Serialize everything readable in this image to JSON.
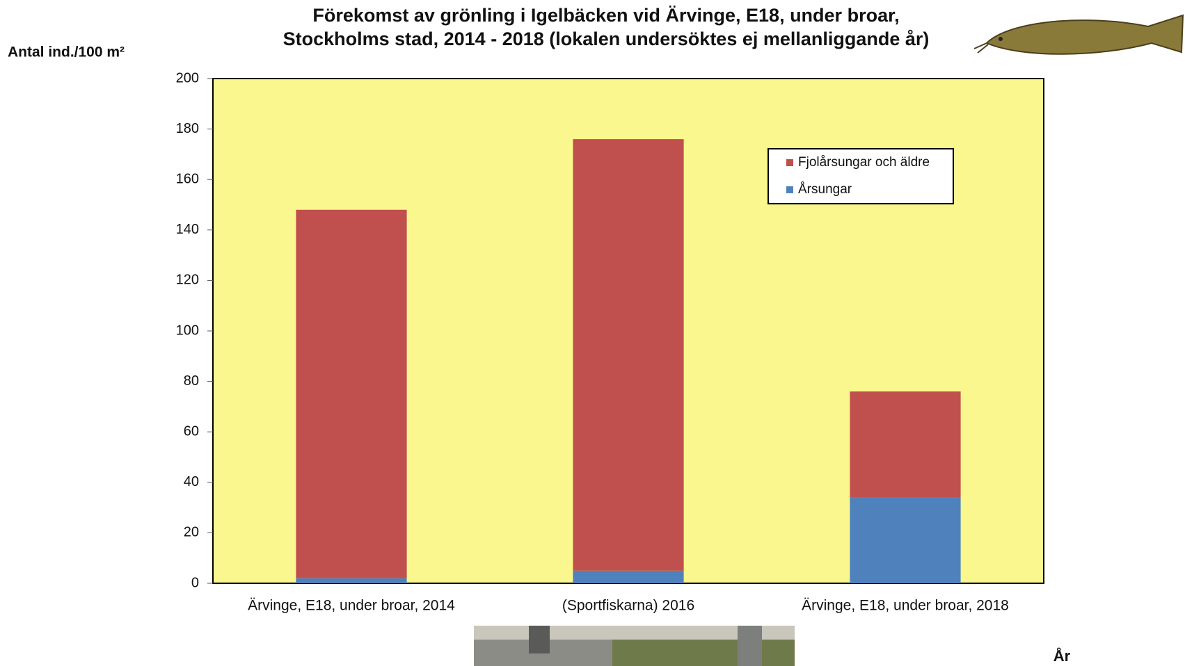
{
  "chart_data": {
    "type": "stacked-bar",
    "title": [
      "Förekomst av grönling i Igelbäcken vid Ärvinge, E18, under broar,",
      "Stockholms stad, 2014 - 2018 (lokalen undersöktes ej mellanliggande år)"
    ],
    "y_label": "Antal ind./100 m²",
    "x_label": "År",
    "categories": [
      "Ärvinge, E18, under broar, 2014",
      "(Sportfiskarna) 2016",
      "Ärvinge, E18, under broar, 2018"
    ],
    "series": [
      {
        "name": "Årsungar",
        "color": "#4f81bd",
        "values": [
          2,
          5,
          34
        ]
      },
      {
        "name": "Fjolårsungar och äldre",
        "color": "#c0504d",
        "values": [
          146,
          171,
          42
        ]
      }
    ],
    "ylim": [
      0,
      200
    ],
    "yticks": [
      0,
      20,
      40,
      60,
      80,
      100,
      120,
      140,
      160,
      180,
      200
    ],
    "plot_background": "#fbf78f"
  }
}
